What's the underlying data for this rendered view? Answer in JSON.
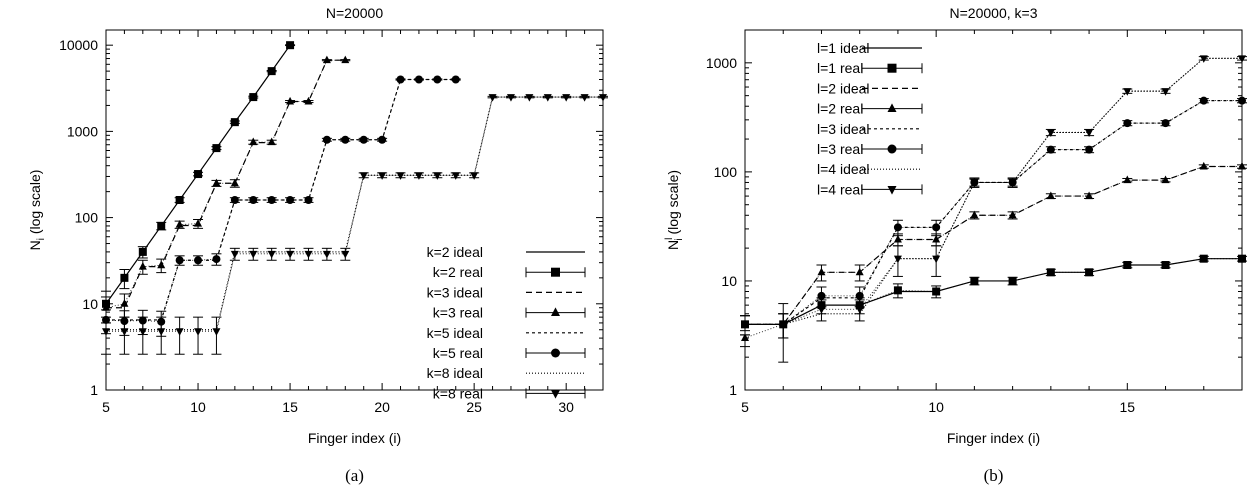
{
  "chart_data": [
    {
      "type": "line",
      "title": "N=20000",
      "xlabel": "Finger index (i)",
      "ylabel_main": "N",
      "ylabel_sub": "i",
      "ylabel_rest": " (log scale)",
      "caption": "(a)",
      "x_scale": "linear",
      "y_scale": "log",
      "xlim": [
        5,
        32
      ],
      "ylim": [
        1,
        15000
      ],
      "x_ticks": [
        5,
        10,
        15,
        20,
        25,
        30
      ],
      "x_tick_labels": [
        "5",
        "10",
        "15",
        "20",
        "25",
        "30"
      ],
      "y_ticks": [
        1,
        10,
        100,
        1000,
        10000
      ],
      "y_tick_labels": [
        "1",
        "10",
        "100",
        "1000",
        "10000"
      ],
      "grid": false,
      "legend_position": "bottom-right",
      "series": [
        {
          "name": "k=2 ideal",
          "style": "ideal",
          "dash": "",
          "x": [
            5,
            6,
            7,
            8,
            9,
            10,
            11,
            12,
            13,
            14,
            15
          ],
          "y": [
            10,
            20,
            40,
            80,
            160,
            320,
            640,
            1280,
            2500,
            5000,
            10000
          ]
        },
        {
          "name": "k=2 real",
          "style": "real",
          "marker": "square",
          "x": [
            5,
            6,
            7,
            8,
            9,
            10,
            11,
            12,
            13,
            14,
            15
          ],
          "y": [
            10,
            20,
            40,
            80,
            160,
            320,
            640,
            1280,
            2500,
            5000,
            10000
          ],
          "err": [
            4,
            5,
            6,
            8,
            10,
            15,
            25,
            40,
            60,
            80,
            100
          ]
        },
        {
          "name": "k=3 ideal",
          "style": "ideal",
          "dash": "6,4",
          "x": [
            5,
            6,
            7,
            8,
            9,
            10,
            11,
            12,
            13,
            14,
            15,
            16,
            17,
            18
          ],
          "y": [
            9,
            9,
            27,
            27,
            81,
            81,
            250,
            250,
            740,
            740,
            2220,
            2220,
            6700,
            6700
          ]
        },
        {
          "name": "k=3 real",
          "style": "real",
          "marker": "triangle",
          "x": [
            5,
            6,
            7,
            8,
            9,
            10,
            11,
            12,
            13,
            14,
            15,
            16,
            17,
            18
          ],
          "y": [
            9,
            10,
            27,
            28,
            83,
            85,
            250,
            250,
            750,
            750,
            2220,
            2220,
            6700,
            6700
          ],
          "err": [
            3,
            3,
            5,
            5,
            8,
            10,
            20,
            25,
            40,
            40,
            60,
            60,
            100,
            100
          ]
        },
        {
          "name": "k=5 ideal",
          "style": "ideal",
          "dash": "3,3",
          "x": [
            5,
            6,
            7,
            8,
            9,
            10,
            11,
            12,
            13,
            14,
            15,
            16,
            17,
            18,
            19,
            20,
            21,
            22,
            23,
            24
          ],
          "y": [
            6.5,
            6.5,
            6.5,
            6.5,
            32,
            32,
            32,
            160,
            160,
            160,
            160,
            160,
            800,
            800,
            800,
            800,
            4000,
            4000,
            4000,
            4000
          ]
        },
        {
          "name": "k=5 real",
          "style": "real",
          "marker": "circle",
          "x": [
            5,
            6,
            7,
            8,
            9,
            10,
            11,
            12,
            13,
            14,
            15,
            16,
            17,
            18,
            19,
            20,
            21,
            22,
            23,
            24
          ],
          "y": [
            6.5,
            6.3,
            6.4,
            6.2,
            32,
            32,
            33,
            160,
            160,
            160,
            160,
            160,
            800,
            800,
            800,
            800,
            4000,
            4000,
            4000,
            4000
          ],
          "err": [
            2,
            2,
            2,
            2,
            4,
            4,
            5,
            10,
            10,
            10,
            10,
            10,
            30,
            30,
            30,
            30,
            60,
            60,
            60,
            60
          ]
        },
        {
          "name": "k=8 ideal",
          "style": "ideal",
          "dash": "1,2",
          "x": [
            5,
            6,
            7,
            8,
            9,
            10,
            11,
            12,
            13,
            14,
            15,
            16,
            17,
            18,
            19,
            20,
            21,
            22,
            23,
            24,
            25,
            26,
            27,
            28,
            29,
            30,
            31,
            32
          ],
          "y": [
            5,
            5,
            5,
            5,
            5,
            5,
            5,
            40,
            40,
            40,
            40,
            40,
            40,
            40,
            310,
            310,
            310,
            310,
            310,
            310,
            310,
            2500,
            2500,
            2500,
            2500,
            2500,
            2500,
            2500
          ]
        },
        {
          "name": "k=8 real",
          "style": "real",
          "marker": "triangle-down",
          "x": [
            5,
            6,
            7,
            8,
            9,
            10,
            11,
            12,
            13,
            14,
            15,
            16,
            17,
            18,
            19,
            20,
            21,
            22,
            23,
            24,
            25,
            26,
            27,
            28,
            29,
            30,
            31,
            32
          ],
          "y": [
            4.8,
            4.8,
            4.8,
            4.8,
            4.8,
            4.8,
            4.8,
            38,
            38,
            38,
            38,
            38,
            38,
            38,
            310,
            310,
            310,
            310,
            310,
            310,
            310,
            2500,
            2500,
            2500,
            2500,
            2500,
            2500,
            2500
          ],
          "err": [
            2.2,
            2.2,
            2.2,
            2.2,
            2.2,
            2.2,
            2.2,
            6,
            6,
            6,
            6,
            6,
            6,
            6,
            20,
            20,
            20,
            20,
            20,
            20,
            20,
            50,
            50,
            50,
            50,
            50,
            50,
            50
          ]
        }
      ]
    },
    {
      "type": "line",
      "title": "N=20000, k=3",
      "xlabel": "Finger index (i)",
      "ylabel_main": "N",
      "ylabel_sub": "i",
      "ylabel_sup": "l",
      "ylabel_rest": " (log scale)",
      "caption": "(b)",
      "x_scale": "linear",
      "y_scale": "log",
      "xlim": [
        5,
        18
      ],
      "ylim": [
        1,
        2000
      ],
      "x_ticks": [
        5,
        10,
        15
      ],
      "x_tick_labels": [
        "5",
        "10",
        "15"
      ],
      "y_ticks": [
        1,
        10,
        100,
        1000
      ],
      "y_tick_labels": [
        "1",
        "10",
        "100",
        "1000"
      ],
      "grid": false,
      "legend_position": "top-left",
      "series": [
        {
          "name": "l=1 ideal",
          "style": "ideal",
          "dash": "",
          "x": [
            5,
            6,
            7,
            8,
            9,
            10,
            11,
            12,
            13,
            14,
            15,
            16,
            17,
            18
          ],
          "y": [
            4,
            4,
            6,
            6,
            8,
            8,
            10,
            10,
            12,
            12,
            14,
            14,
            16,
            16
          ]
        },
        {
          "name": "l=1 real",
          "style": "real",
          "marker": "square",
          "x": [
            5,
            6,
            7,
            8,
            9,
            10,
            11,
            12,
            13,
            14,
            15,
            16,
            17,
            18
          ],
          "y": [
            4,
            4,
            6,
            6,
            8.2,
            8,
            10,
            10,
            12,
            12,
            14,
            14,
            16,
            16
          ],
          "err": [
            0.8,
            2.2,
            1,
            1,
            1.2,
            1,
            0.8,
            0.8,
            0.8,
            0.8,
            0.8,
            0.8,
            0.8,
            0.8
          ]
        },
        {
          "name": "l=2 ideal",
          "style": "ideal",
          "dash": "6,4",
          "x": [
            5,
            6,
            7,
            8,
            9,
            10,
            11,
            12,
            13,
            14,
            15,
            16,
            17,
            18
          ],
          "y": [
            4,
            4,
            12,
            12,
            24,
            24,
            40,
            40,
            60,
            60,
            84,
            84,
            112,
            112
          ]
        },
        {
          "name": "l=2 real",
          "style": "real",
          "marker": "triangle",
          "x": [
            5,
            6,
            7,
            8,
            9,
            10,
            11,
            12,
            13,
            14,
            15,
            16,
            17,
            18
          ],
          "y": [
            3,
            4,
            12,
            12,
            24,
            24,
            40,
            40,
            60,
            60,
            84,
            84,
            112,
            112
          ],
          "err": [
            0.5,
            1,
            2,
            2,
            3,
            3,
            3,
            3,
            3,
            3,
            3,
            3,
            4,
            4
          ]
        },
        {
          "name": "l=3 ideal",
          "style": "ideal",
          "dash": "3,3",
          "x": [
            5,
            6,
            7,
            8,
            9,
            10,
            11,
            12,
            13,
            14,
            15,
            16,
            17,
            18
          ],
          "y": [
            4,
            4,
            7,
            7,
            31,
            31,
            80,
            80,
            160,
            160,
            280,
            280,
            450,
            450
          ]
        },
        {
          "name": "l=3 real",
          "style": "real",
          "marker": "circle",
          "x": [
            5,
            6,
            7,
            8,
            9,
            10,
            11,
            12,
            13,
            14,
            15,
            16,
            17,
            18
          ],
          "y": [
            4,
            4,
            7.3,
            7.3,
            31,
            31,
            80,
            80,
            160,
            160,
            280,
            280,
            450,
            450
          ],
          "err": [
            0.8,
            1,
            1.5,
            1.5,
            5,
            5,
            6,
            6,
            10,
            10,
            15,
            15,
            20,
            20
          ]
        },
        {
          "name": "l=4 ideal",
          "style": "ideal",
          "dash": "1,2",
          "x": [
            5,
            6,
            7,
            8,
            9,
            10,
            11,
            12,
            13,
            14,
            15,
            16,
            17,
            18
          ],
          "y": [
            4,
            4,
            5,
            5,
            16,
            16,
            80,
            80,
            230,
            230,
            550,
            550,
            1100,
            1100
          ]
        },
        {
          "name": "l=4 real",
          "style": "real",
          "marker": "triangle-down",
          "x": [
            5,
            6,
            7,
            8,
            9,
            10,
            11,
            12,
            13,
            14,
            15,
            16,
            17,
            18
          ],
          "y": [
            4,
            4,
            5.5,
            5.5,
            16,
            16,
            80,
            80,
            230,
            230,
            550,
            550,
            1100,
            1100
          ],
          "err": [
            0.8,
            1,
            1.2,
            1.2,
            5,
            5,
            8,
            8,
            15,
            15,
            25,
            25,
            40,
            40
          ]
        }
      ]
    }
  ]
}
